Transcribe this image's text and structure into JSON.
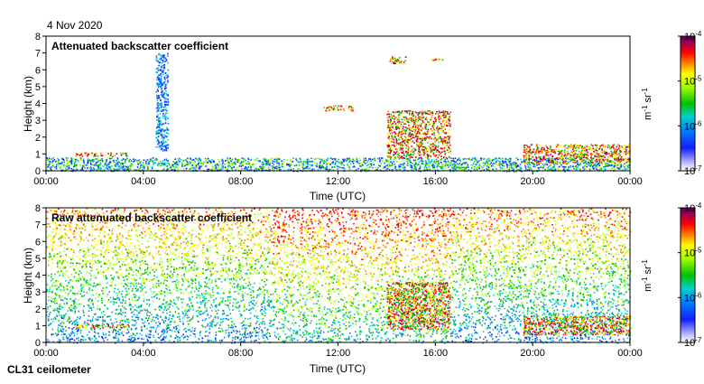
{
  "date_label": "4 Nov 2020",
  "instrument_label": "CL31 ceilometer",
  "chart_data": [
    {
      "type": "heatmap",
      "title": "Attenuated backscatter coefficient",
      "xlabel": "Time (UTC)",
      "ylabel": "Height (km)",
      "xlim": [
        0,
        24
      ],
      "ylim": [
        0,
        8
      ],
      "x_ticks": [
        0,
        4,
        8,
        12,
        16,
        20,
        24
      ],
      "x_tick_labels": [
        "00:00",
        "04:00",
        "08:00",
        "12:00",
        "16:00",
        "20:00",
        "00:00"
      ],
      "y_ticks": [
        0,
        1,
        2,
        3,
        4,
        5,
        6,
        7,
        8
      ],
      "y_tick_labels": [
        "0",
        "1",
        "2",
        "3",
        "4",
        "5",
        "6",
        "7",
        "8"
      ],
      "colorbar": {
        "label_base": "m",
        "label_exp1": "-1",
        "label_mid": " sr",
        "label_exp2": "-1",
        "scale": "log",
        "range": [
          "1e-7",
          "1e-4"
        ],
        "ticks": [
          {
            "base": "10",
            "exp": "-4"
          },
          {
            "base": "10",
            "exp": "-5"
          },
          {
            "base": "10",
            "exp": "-6"
          },
          {
            "base": "10",
            "exp": "-7"
          }
        ]
      },
      "features": [
        {
          "name": "boundary layer",
          "t_start": 0,
          "t_end": 24,
          "height_km": [
            0,
            0.8
          ],
          "level": "medium"
        },
        {
          "name": "low cloud layer",
          "t_start": 1.2,
          "t_end": 3.4,
          "height_km": [
            0.9,
            1.1
          ],
          "level": "high"
        },
        {
          "name": "noise column",
          "t_start": 4.5,
          "t_end": 5.0,
          "height_km": [
            1.2,
            7.0
          ],
          "level": "low"
        },
        {
          "name": "cloud 14-16h",
          "t_start": 14.0,
          "t_end": 16.6,
          "height_km": [
            0.8,
            3.6
          ],
          "level": "high"
        },
        {
          "name": "cloud 6.7km",
          "t_start": 15.8,
          "t_end": 16.4,
          "height_km": [
            6.6,
            6.7
          ],
          "level": "high"
        },
        {
          "name": "cloud 6.5km",
          "t_start": 14.1,
          "t_end": 14.8,
          "height_km": [
            6.4,
            6.8
          ],
          "level": "high"
        },
        {
          "name": "cloud 3.8km",
          "t_start": 11.4,
          "t_end": 12.6,
          "height_km": [
            3.6,
            3.9
          ],
          "level": "high"
        },
        {
          "name": "evening clouds",
          "t_start": 19.6,
          "t_end": 24,
          "height_km": [
            0.5,
            1.6
          ],
          "level": "high"
        }
      ]
    },
    {
      "type": "heatmap",
      "title": "Raw attenuated backscatter coefficient",
      "xlabel": "Time (UTC)",
      "ylabel": "Height (km)",
      "xlim": [
        0,
        24
      ],
      "ylim": [
        0,
        8
      ],
      "x_ticks": [
        0,
        4,
        8,
        12,
        16,
        20,
        24
      ],
      "x_tick_labels": [
        "00:00",
        "04:00",
        "08:00",
        "12:00",
        "16:00",
        "20:00",
        "00:00"
      ],
      "y_ticks": [
        0,
        1,
        2,
        3,
        4,
        5,
        6,
        7,
        8
      ],
      "y_tick_labels": [
        "0",
        "1",
        "2",
        "3",
        "4",
        "5",
        "6",
        "7",
        "8"
      ],
      "colorbar": {
        "label_base": "m",
        "label_exp1": "-1",
        "label_mid": " sr",
        "label_exp2": "-1",
        "scale": "log",
        "range": [
          "1e-7",
          "1e-4"
        ],
        "ticks": [
          {
            "base": "10",
            "exp": "-4"
          },
          {
            "base": "10",
            "exp": "-5"
          },
          {
            "base": "10",
            "exp": "-6"
          },
          {
            "base": "10",
            "exp": "-7"
          }
        ]
      },
      "features": [
        {
          "name": "noisy background",
          "t_start": 0,
          "t_end": 24,
          "height_km": [
            0,
            8
          ],
          "level": "noise"
        },
        {
          "name": "low cloud layer",
          "t_start": 1.2,
          "t_end": 3.4,
          "height_km": [
            0.9,
            1.1
          ],
          "level": "high"
        },
        {
          "name": "cloud 14-16h",
          "t_start": 14.0,
          "t_end": 16.6,
          "height_km": [
            0.8,
            3.6
          ],
          "level": "high"
        },
        {
          "name": "evening clouds",
          "t_start": 19.6,
          "t_end": 24,
          "height_km": [
            0.5,
            1.6
          ],
          "level": "high"
        }
      ]
    }
  ]
}
